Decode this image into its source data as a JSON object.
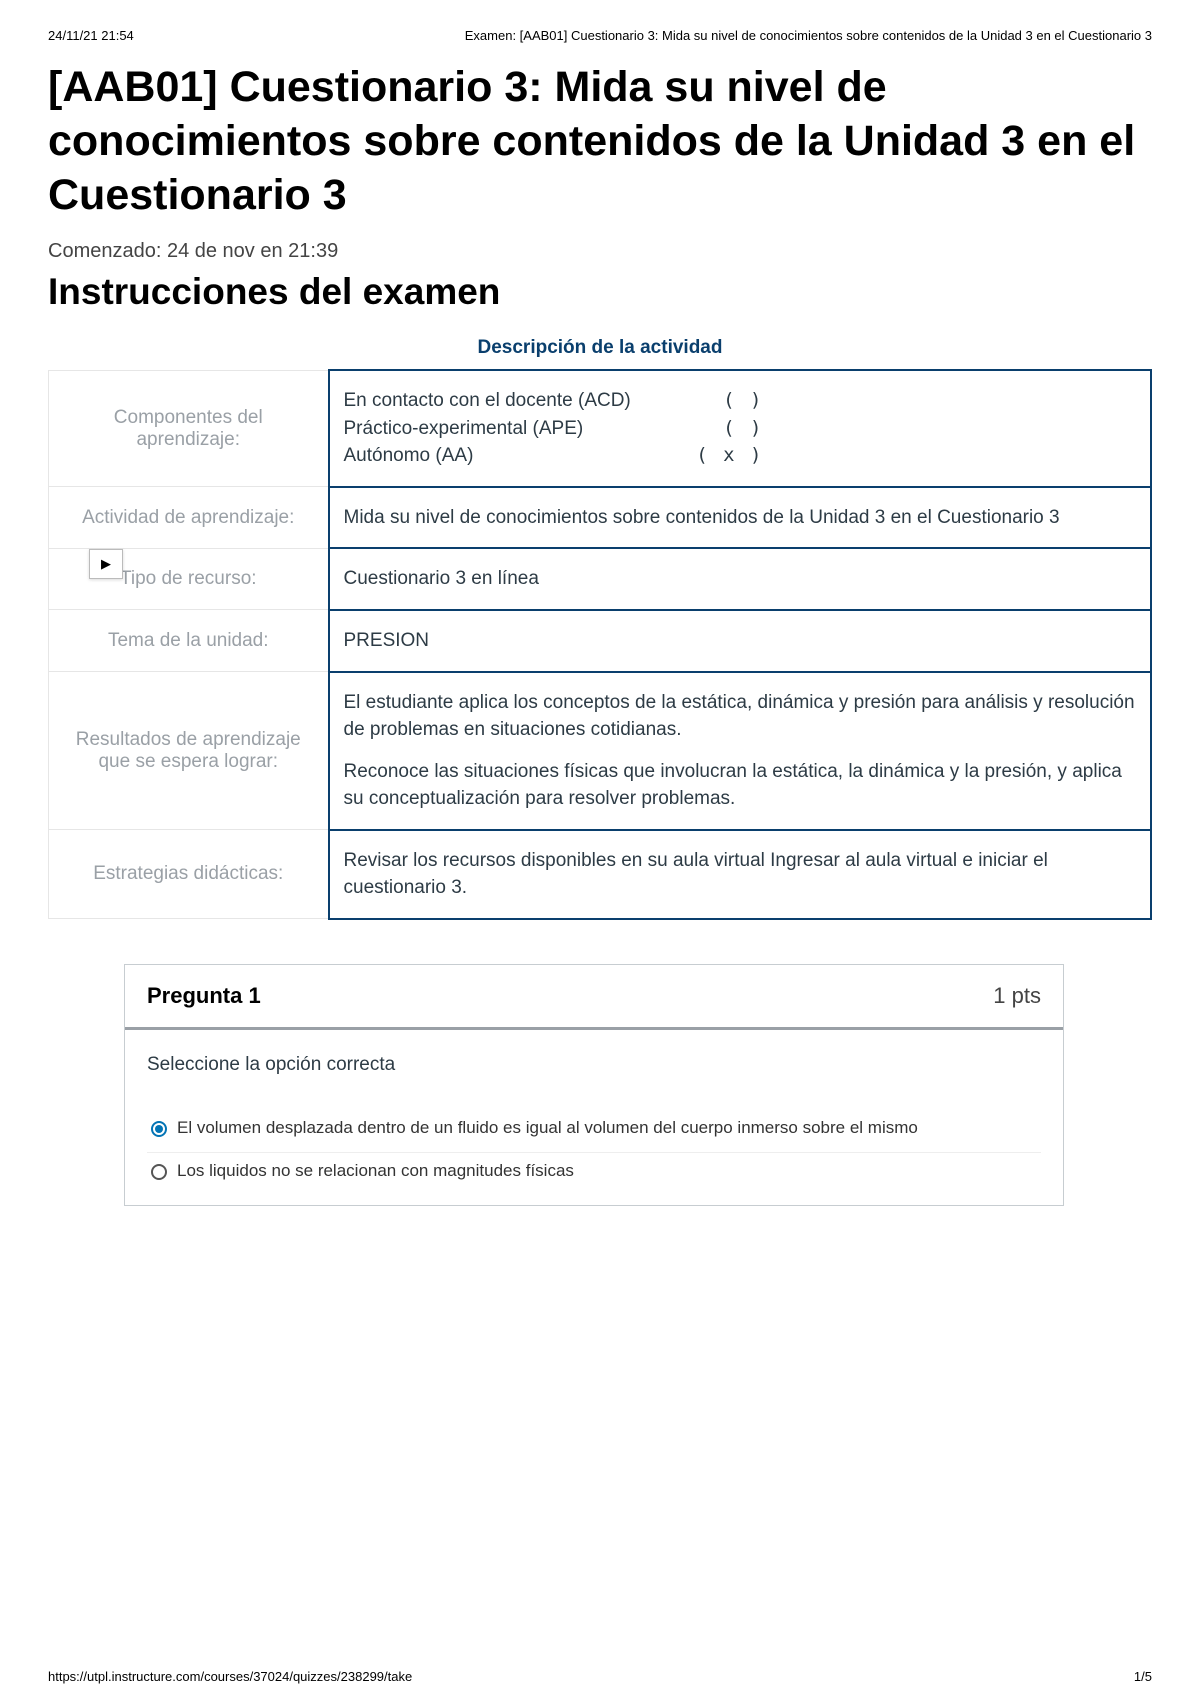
{
  "print": {
    "timestamp": "24/11/21 21:54",
    "doc_title": "Examen: [AAB01] Cuestionario 3: Mida su nivel de conocimientos sobre contenidos de la Unidad 3 en el Cuestionario 3",
    "footer_url": "https://utpl.instructure.com/courses/37024/quizzes/238299/take",
    "page_no": "1/5"
  },
  "header": {
    "title": "[AAB01] Cuestionario 3: Mida su nivel de conocimientos sobre contenidos de la Unidad 3 en el Cuestionario 3",
    "started": "Comenzado: 24 de nov en 21:39",
    "instructions_title": "Instrucciones del examen"
  },
  "activity": {
    "desc_title": "Descripción de la actividad",
    "rows": {
      "componentes_label": "Componentes del aprendizaje:",
      "componentes": [
        {
          "name": "En contacto con el docente (ACD)",
          "mark": "(   )"
        },
        {
          "name": "Práctico-experimental (APE)",
          "mark": "(   )"
        },
        {
          "name": "Autónomo (AA)",
          "mark": "( x )"
        }
      ],
      "actividad_label": "Actividad de aprendizaje:",
      "actividad_value": "Mida su nivel de conocimientos sobre contenidos de la Unidad 3 en el Cuestionario 3",
      "tipo_label": "Tipo de recurso:",
      "tipo_value": "Cuestionario 3 en línea",
      "tema_label": "Tema de la unidad:",
      "tema_value": "PRESION",
      "resultados_label": "Resultados de aprendizaje que se espera lograr:",
      "resultados_p1": "El estudiante aplica los conceptos de la estática, dinámica y presión para análisis y resolución de problemas en situaciones cotidianas.",
      "resultados_p2": "Reconoce las situaciones físicas que involucran la estática, la dinámica y la presión, y aplica su conceptualización para resolver problemas.",
      "estrategias_label": "Estrategias didácticas:",
      "estrategias_value": "Revisar los recursos disponibles en su aula virtual  Ingresar al aula virtual e iniciar el cuestionario 3."
    }
  },
  "question": {
    "title": "Pregunta 1",
    "pts": "1 pts",
    "prompt": "Seleccione la opción correcta",
    "options": [
      {
        "text": "El volumen desplazada dentro de un fluido es igual al volumen del cuerpo inmerso sobre el mismo",
        "selected": true
      },
      {
        "text": "Los liquidos no se relacionan con magnitudes físicas",
        "selected": false
      }
    ]
  },
  "colors": {
    "border_dark": "#0a3f6d",
    "label_gray": "#9aa0a6",
    "radio_blue": "#0374b5"
  }
}
